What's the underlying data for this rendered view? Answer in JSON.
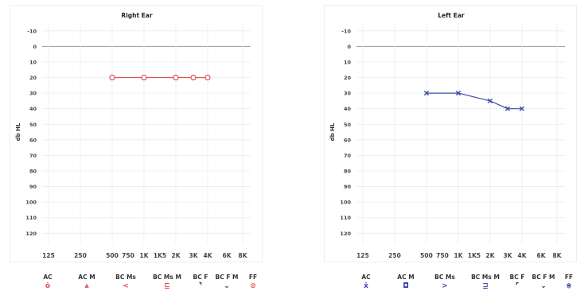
{
  "chart_data": [
    {
      "type": "line",
      "title": "Right Ear",
      "ylabel": "db HL",
      "xlabel": "",
      "y_reversed": true,
      "ylim": [
        -15,
        127
      ],
      "yticks": [
        "-10",
        "0",
        "10",
        "20",
        "30",
        "40",
        "50",
        "60",
        "70",
        "80",
        "90",
        "100",
        "110",
        "120"
      ],
      "xticks": [
        "125",
        "250",
        "500",
        "750",
        "1K",
        "1K5",
        "2K",
        "3K",
        "4K",
        "6K",
        "8K"
      ],
      "grid": true,
      "reference_line": 0,
      "color": "#e05050",
      "series": [
        {
          "marker": "circle",
          "x": [
            "500",
            "1K",
            "2K",
            "3K",
            "4K"
          ],
          "values": [
            20,
            20,
            20,
            20,
            20
          ]
        }
      ]
    },
    {
      "type": "line",
      "title": "Left Ear",
      "ylabel": "db HL",
      "xlabel": "",
      "y_reversed": true,
      "ylim": [
        -15,
        127
      ],
      "yticks": [
        "-10",
        "0",
        "10",
        "20",
        "30",
        "40",
        "50",
        "60",
        "70",
        "80",
        "90",
        "100",
        "110",
        "120"
      ],
      "xticks": [
        "125",
        "250",
        "500",
        "750",
        "1K",
        "1K5",
        "2K",
        "3K",
        "4K",
        "6K",
        "8K"
      ],
      "grid": true,
      "reference_line": 0,
      "color": "#3b4aa8",
      "series": [
        {
          "marker": "cross",
          "x": [
            "500",
            "1K",
            "2K",
            "3K",
            "4K"
          ],
          "values": [
            30,
            30,
            35,
            40,
            40
          ]
        }
      ]
    }
  ],
  "legend_labels": [
    "AC",
    "AC M",
    "BC Ms",
    "BC Ms M",
    "BC F",
    "BC F M",
    "FF"
  ],
  "legends": {
    "right": {
      "color": "#e05050",
      "symbols": [
        "ȯ",
        "⩓",
        "<",
        "⊑",
        "⌝",
        "⌄",
        "⊘"
      ],
      "symbol_colors": [
        "#e05050",
        "#e05050",
        "#e05050",
        "#e05050",
        "#333333",
        "#333333",
        "#e05050"
      ]
    },
    "left": {
      "color": "#3b4aa8",
      "symbols": [
        "ẋ",
        "◘",
        ">",
        "⊒",
        "⌜",
        "⌄",
        "⋇"
      ],
      "symbol_colors": [
        "#3b4aa8",
        "#3b4aa8",
        "#3b4aa8",
        "#3b4aa8",
        "#333333",
        "#333333",
        "#3b4aa8"
      ]
    }
  }
}
